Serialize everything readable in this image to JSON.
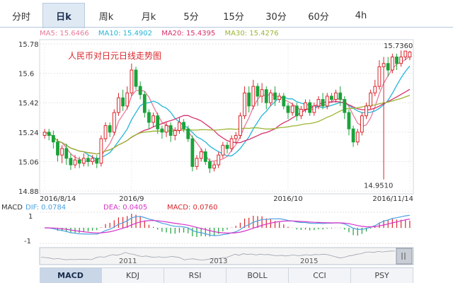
{
  "tabs": [
    {
      "label": "分时",
      "active": false
    },
    {
      "label": "日k",
      "active": true
    },
    {
      "label": "周k",
      "active": false
    },
    {
      "label": "月k",
      "active": false
    },
    {
      "label": "5分",
      "active": false
    },
    {
      "label": "15分",
      "active": false
    },
    {
      "label": "30分",
      "active": false
    },
    {
      "label": "60分",
      "active": false
    },
    {
      "label": "4h",
      "active": false
    }
  ],
  "ma_legend": {
    "ma5": "MA5: 15.6466",
    "ma10": "MA10: 15.4902",
    "ma20": "MA20: 15.4395",
    "ma30": "MA30: 15.4276"
  },
  "colors": {
    "up": "#d9262c",
    "down": "#1aa33a",
    "ma5": "#e87a9a",
    "ma10": "#25b5d8",
    "ma20": "#d62f6c",
    "ma30": "#9cb532",
    "dif": "#4aa0e0",
    "dea": "#d633c8",
    "macd": "#d9262c"
  },
  "chart_data": {
    "type": "candlestick",
    "title": "人民币对日元日线走势图",
    "y_ticks": [
      15.78,
      15.6,
      15.42,
      15.24,
      15.06,
      14.88
    ],
    "ylim": [
      14.88,
      15.78
    ],
    "x_labels": [
      "2016/8/14",
      "2016/9",
      "2016/10",
      "2016/11/14"
    ],
    "x_label_index": [
      0,
      20,
      56,
      84
    ],
    "annotations": {
      "high": "15.7360",
      "low": "14.9510"
    },
    "high_value": 15.736,
    "low_value": 14.951,
    "candles": [
      [
        15.22,
        15.24,
        15.26,
        15.2
      ],
      [
        15.24,
        15.22,
        15.26,
        15.19
      ],
      [
        15.22,
        15.18,
        15.25,
        15.14
      ],
      [
        15.18,
        15.1,
        15.2,
        15.06
      ],
      [
        15.1,
        15.14,
        15.16,
        15.05
      ],
      [
        15.14,
        15.08,
        15.17,
        15.04
      ],
      [
        15.08,
        15.04,
        15.11,
        15.01
      ],
      [
        15.04,
        15.07,
        15.1,
        15.02
      ],
      [
        15.07,
        15.05,
        15.09,
        15.02
      ],
      [
        15.05,
        15.08,
        15.11,
        15.03
      ],
      [
        15.08,
        15.06,
        15.1,
        15.03
      ],
      [
        15.06,
        15.08,
        15.1,
        15.04
      ],
      [
        15.08,
        15.05,
        15.1,
        15.02
      ],
      [
        15.05,
        15.2,
        15.22,
        15.03
      ],
      [
        15.2,
        15.28,
        15.3,
        15.18
      ],
      [
        15.28,
        15.24,
        15.3,
        15.21
      ],
      [
        15.24,
        15.36,
        15.38,
        15.22
      ],
      [
        15.36,
        15.45,
        15.48,
        15.34
      ],
      [
        15.45,
        15.4,
        15.5,
        15.37
      ],
      [
        15.4,
        15.48,
        15.52,
        15.38
      ],
      [
        15.48,
        15.62,
        15.66,
        15.46
      ],
      [
        15.62,
        15.52,
        15.64,
        15.5
      ],
      [
        15.52,
        15.47,
        15.55,
        15.44
      ],
      [
        15.47,
        15.36,
        15.49,
        15.33
      ],
      [
        15.36,
        15.3,
        15.38,
        15.26
      ],
      [
        15.3,
        15.34,
        15.36,
        15.27
      ],
      [
        15.34,
        15.26,
        15.36,
        15.23
      ],
      [
        15.26,
        15.24,
        15.28,
        15.2
      ],
      [
        15.24,
        15.28,
        15.3,
        15.21
      ],
      [
        15.28,
        15.22,
        15.3,
        15.18
      ],
      [
        15.22,
        15.25,
        15.27,
        15.19
      ],
      [
        15.25,
        15.3,
        15.33,
        15.23
      ],
      [
        15.3,
        15.26,
        15.32,
        15.24
      ],
      [
        15.26,
        15.2,
        15.28,
        15.18
      ],
      [
        15.2,
        15.03,
        15.22,
        15.0
      ],
      [
        15.03,
        15.08,
        15.1,
        15.01
      ],
      [
        15.08,
        15.12,
        15.14,
        15.06
      ],
      [
        15.12,
        15.06,
        15.14,
        15.04
      ],
      [
        15.06,
        15.02,
        15.08,
        14.99
      ],
      [
        15.02,
        15.04,
        15.06,
        15.0
      ],
      [
        15.04,
        15.1,
        15.12,
        15.02
      ],
      [
        15.1,
        15.16,
        15.18,
        15.08
      ],
      [
        15.16,
        15.14,
        15.18,
        15.11
      ],
      [
        15.14,
        15.2,
        15.22,
        15.12
      ],
      [
        15.2,
        15.22,
        15.24,
        15.17
      ],
      [
        15.22,
        15.34,
        15.36,
        15.2
      ],
      [
        15.34,
        15.48,
        15.52,
        15.32
      ],
      [
        15.48,
        15.4,
        15.52,
        15.36
      ],
      [
        15.4,
        15.52,
        15.56,
        15.38
      ],
      [
        15.52,
        15.46,
        15.54,
        15.4
      ],
      [
        15.46,
        15.5,
        15.54,
        15.42
      ],
      [
        15.5,
        15.42,
        15.52,
        15.38
      ],
      [
        15.42,
        15.48,
        15.5,
        15.4
      ],
      [
        15.48,
        15.44,
        15.52,
        15.4
      ],
      [
        15.44,
        15.46,
        15.48,
        15.42
      ],
      [
        15.46,
        15.4,
        15.48,
        15.38
      ],
      [
        15.4,
        15.36,
        15.42,
        15.32
      ],
      [
        15.36,
        15.4,
        15.42,
        15.34
      ],
      [
        15.4,
        15.34,
        15.42,
        15.31
      ],
      [
        15.34,
        15.38,
        15.4,
        15.32
      ],
      [
        15.38,
        15.42,
        15.44,
        15.36
      ],
      [
        15.42,
        15.36,
        15.44,
        15.34
      ],
      [
        15.36,
        15.4,
        15.42,
        15.34
      ],
      [
        15.4,
        15.44,
        15.46,
        15.38
      ],
      [
        15.44,
        15.4,
        15.48,
        15.38
      ],
      [
        15.4,
        15.46,
        15.48,
        15.38
      ],
      [
        15.46,
        15.44,
        15.48,
        15.42
      ],
      [
        15.44,
        15.48,
        15.5,
        15.42
      ],
      [
        15.48,
        15.44,
        15.52,
        15.4
      ],
      [
        15.44,
        15.36,
        15.46,
        15.32
      ],
      [
        15.36,
        15.26,
        15.38,
        15.22
      ],
      [
        15.26,
        15.18,
        15.28,
        15.15
      ],
      [
        15.18,
        15.24,
        15.26,
        15.16
      ],
      [
        15.24,
        15.34,
        15.36,
        15.22
      ],
      [
        15.34,
        15.4,
        15.42,
        15.32
      ],
      [
        15.4,
        15.48,
        15.5,
        15.38
      ],
      [
        15.48,
        15.52,
        15.56,
        15.46
      ],
      [
        15.52,
        15.64,
        15.68,
        15.5
      ],
      [
        15.64,
        15.66,
        15.7,
        14.951
      ],
      [
        15.66,
        15.62,
        15.7,
        15.58
      ],
      [
        15.62,
        15.7,
        15.72,
        15.6
      ],
      [
        15.7,
        15.66,
        15.72,
        15.62
      ],
      [
        15.66,
        15.7,
        15.74,
        15.64
      ],
      [
        15.7,
        15.736,
        15.736,
        15.68
      ],
      [
        15.7,
        15.73,
        15.736,
        15.68
      ]
    ]
  },
  "macd": {
    "label": "MACD",
    "dif_label": "DIF: 0.0784",
    "dea_label": "DEA: 0.0405",
    "macd_label": "MACD: 0.0760",
    "y_ticks": [
      "1",
      "-1"
    ]
  },
  "navigator": {
    "years": [
      "2011",
      "2013",
      "2015"
    ]
  },
  "indicators": [
    {
      "label": "MACD",
      "active": true
    },
    {
      "label": "KDJ",
      "active": false
    },
    {
      "label": "RSI",
      "active": false
    },
    {
      "label": "BOLL",
      "active": false
    },
    {
      "label": "CCI",
      "active": false
    },
    {
      "label": "PSY",
      "active": false
    }
  ]
}
